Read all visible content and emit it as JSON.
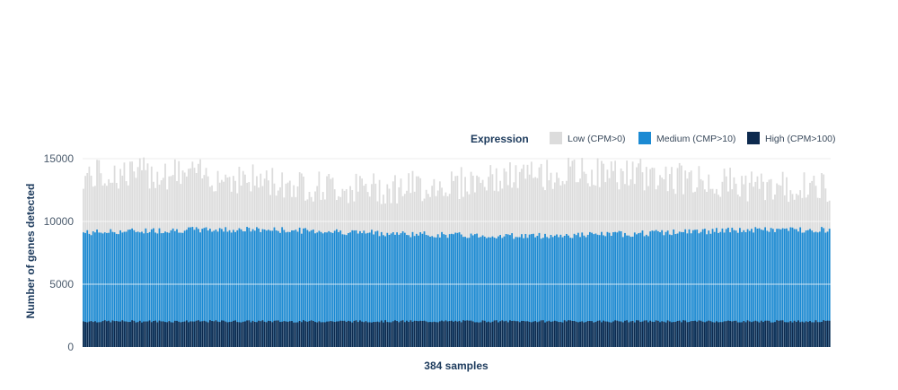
{
  "chart_data": {
    "type": "bar",
    "stacked": true,
    "n_samples": 384,
    "xlabel": "384 samples",
    "ylabel": "Number of genes detected",
    "ylim": [
      0,
      15000
    ],
    "yticks": [
      0,
      5000,
      10000,
      15000
    ],
    "grid": true,
    "legend": {
      "title": "Expression",
      "placement": "top-right",
      "entries": [
        {
          "key": "low",
          "label": "Low (CPM>0)",
          "color": "#dcdcdc"
        },
        {
          "key": "medium",
          "label": "Medium (CMP>10)",
          "color": "#1b8ad3"
        },
        {
          "key": "high",
          "label": "High (CPM>100)",
          "color": "#0d2a4e"
        }
      ]
    },
    "series": [
      {
        "name": "High (CPM>100)",
        "color": "#0d2a4e",
        "values_summary": "approximately 1900–2200 genes per sample",
        "typical": 2050
      },
      {
        "name": "Medium (CMP>10)",
        "color": "#1b8ad3",
        "values_summary": "cumulative top approximately 8500–9600 genes per sample",
        "typical": 9100
      },
      {
        "name": "Low (CPM>0)",
        "color": "#dcdcdc",
        "values_summary": "cumulative top approximately 11000–15000 genes per sample",
        "typical": 13000
      }
    ]
  }
}
